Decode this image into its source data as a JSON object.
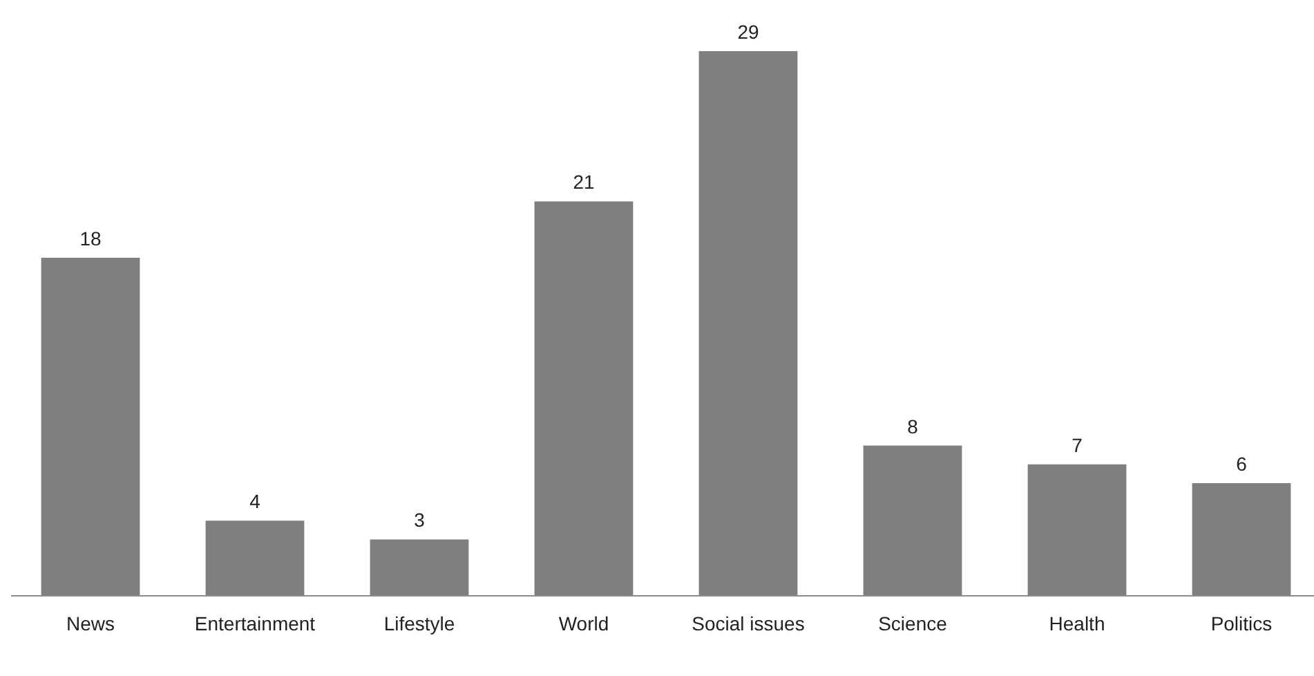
{
  "chart_data": {
    "type": "bar",
    "categories": [
      "News",
      "Entertainment",
      "Lifestyle",
      "World",
      "Social issues",
      "Science",
      "Health",
      "Politics"
    ],
    "values": [
      18,
      4,
      3,
      21,
      29,
      8,
      7,
      6
    ],
    "color": "#7f7f7f",
    "data_labels": true
  }
}
